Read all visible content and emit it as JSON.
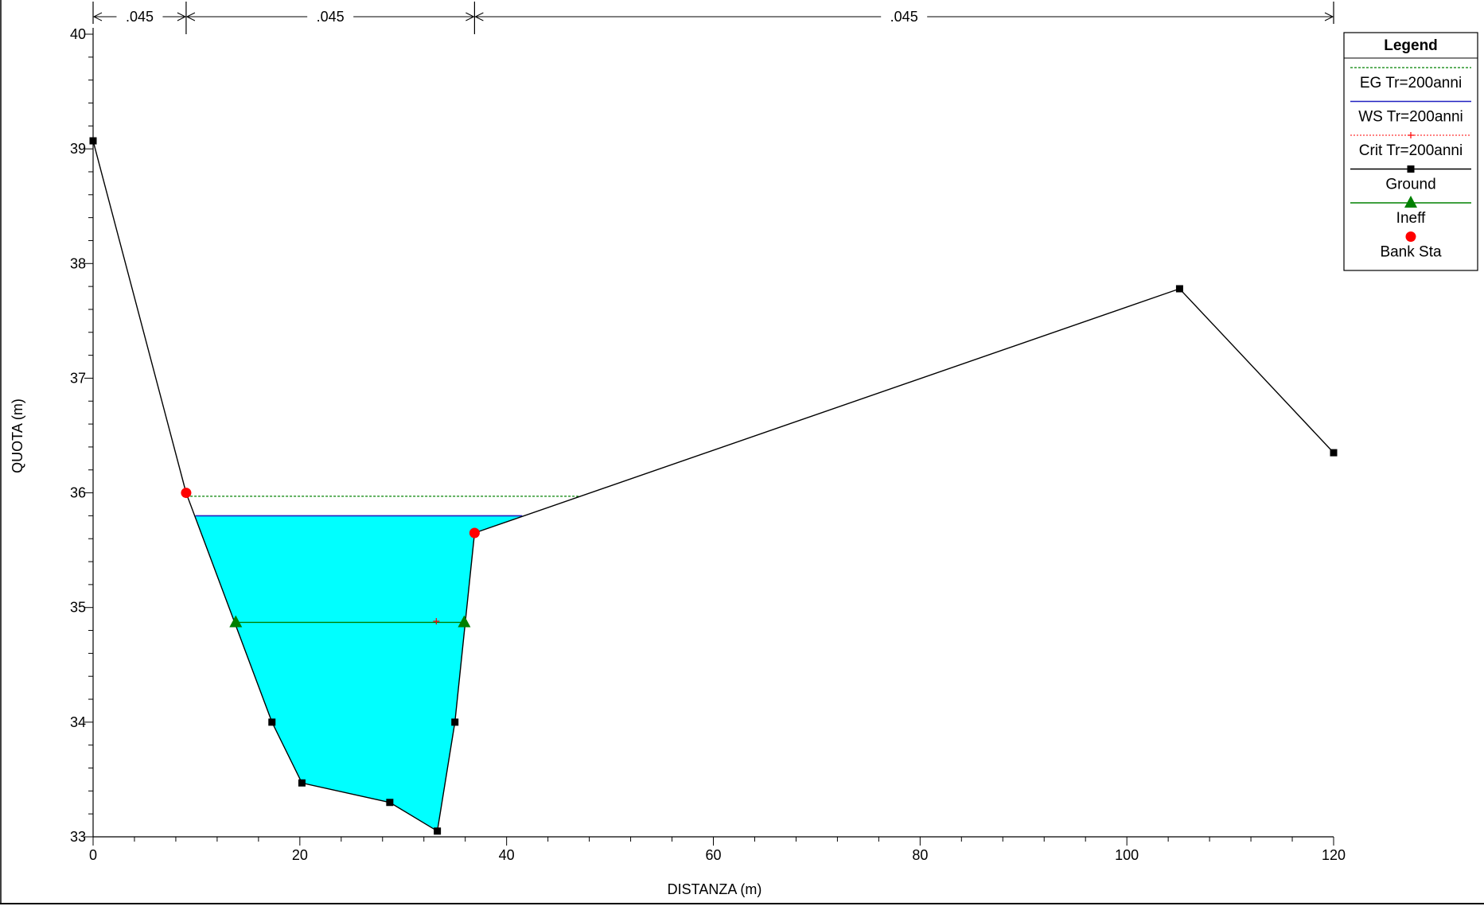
{
  "chart_data": {
    "type": "line",
    "xlabel": "DISTANZA (m)",
    "ylabel": "QUOTA (m)",
    "xlim": [
      0,
      120
    ],
    "ylim": [
      33,
      40
    ],
    "x_ticks": [
      0,
      20,
      40,
      60,
      80,
      100,
      120
    ],
    "y_ticks": [
      33,
      34,
      35,
      36,
      37,
      38,
      39,
      40
    ],
    "grid": false,
    "legend_position": "top-right",
    "legend_title": "Legend",
    "manning": [
      {
        "label": ".045",
        "from": 0,
        "to": 9
      },
      {
        "label": ".045",
        "from": 9,
        "to": 36.9
      },
      {
        "label": ".045",
        "from": 36.9,
        "to": 120
      }
    ],
    "series": [
      {
        "name": "Ground",
        "color": "#000000",
        "x": [
          0,
          9,
          17.3,
          20.2,
          28.7,
          33.3,
          35,
          36.9,
          105.1,
          120
        ],
        "y": [
          39.07,
          36.0,
          34.0,
          33.47,
          33.3,
          33.05,
          34.0,
          35.65,
          37.78,
          36.35
        ]
      },
      {
        "name": "WS Tr=200anni",
        "color": "#2020c0",
        "x": [
          9.9,
          41.5
        ],
        "y": [
          35.8,
          35.8
        ]
      },
      {
        "name": "EG Tr=200anni",
        "color": "#008000",
        "x": [
          9.4,
          47.0
        ],
        "y": [
          35.97,
          35.97
        ]
      },
      {
        "name": "Crit Tr=200anni",
        "color": "#ff0000",
        "x": [
          33.2
        ],
        "y": [
          34.88
        ]
      },
      {
        "name": "Ineff",
        "color": "#008000",
        "x": [
          13.8,
          35.9
        ],
        "y": [
          34.87,
          34.87
        ]
      },
      {
        "name": "Bank Sta",
        "color": "#ff0000",
        "x": [
          9,
          36.9
        ],
        "y": [
          36.0,
          35.65
        ]
      }
    ],
    "water_fill_color": "#00ffff"
  }
}
